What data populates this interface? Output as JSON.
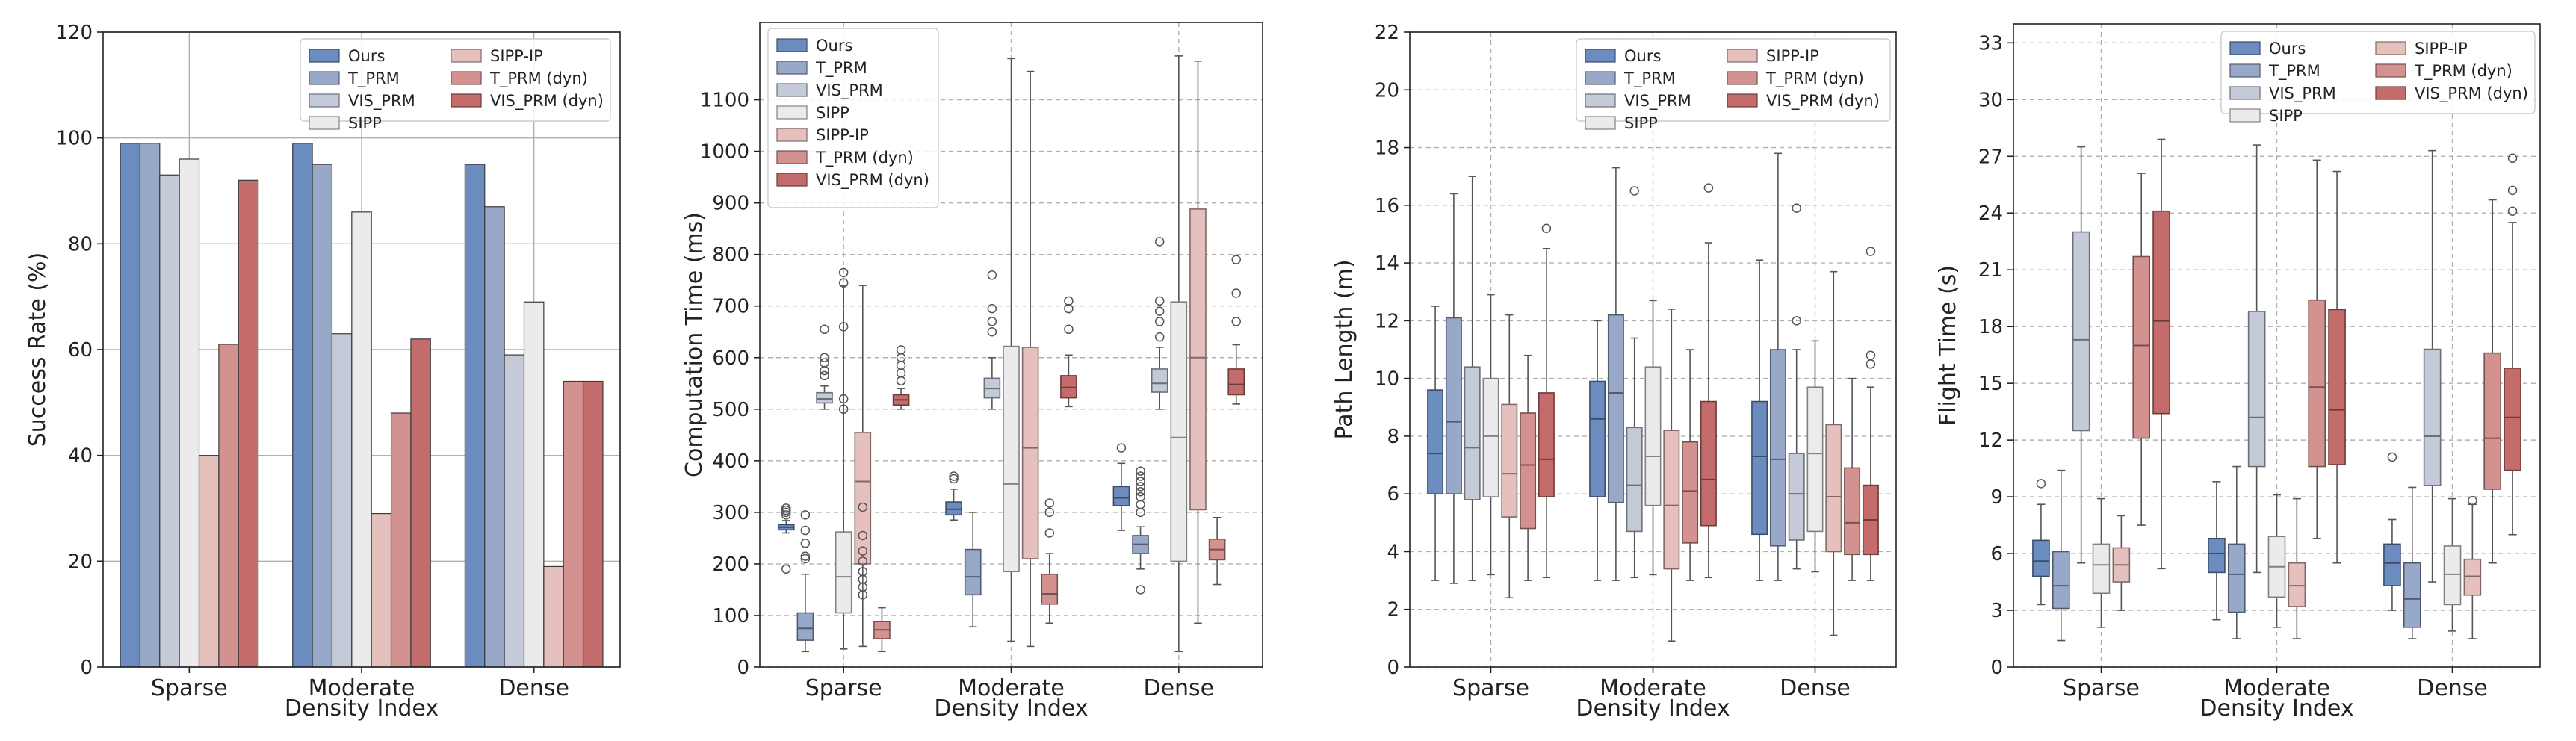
{
  "figure": {
    "colors": {
      "Ours": "#6b8cbf",
      "T_PRM": "#97a8c9",
      "VIS_PRM": "#c4cad8",
      "SIPP": "#ebebeb",
      "SIPP-IP": "#e6c0bd",
      "T_PRM (dyn)": "#d39290",
      "VIS_PRM (dyn)": "#c46c6b"
    }
  },
  "chart_data": [
    {
      "type": "bar",
      "xlabel": "Density Index",
      "ylabel": "Success Rate (%)",
      "ylim": [
        0,
        120
      ],
      "yticks": [
        0,
        20,
        40,
        60,
        80,
        100,
        120
      ],
      "categories": [
        "Sparse",
        "Moderate",
        "Dense"
      ],
      "legend": {
        "position": "top-right",
        "columns": 2
      },
      "series": [
        {
          "name": "Ours",
          "values": [
            99,
            99,
            95
          ]
        },
        {
          "name": "T_PRM",
          "values": [
            99,
            95,
            87
          ]
        },
        {
          "name": "VIS_PRM",
          "values": [
            93,
            63,
            59
          ]
        },
        {
          "name": "SIPP",
          "values": [
            96,
            86,
            69
          ]
        },
        {
          "name": "SIPP-IP",
          "values": [
            40,
            29,
            19
          ]
        },
        {
          "name": "T_PRM (dyn)",
          "values": [
            61,
            48,
            54
          ]
        },
        {
          "name": "VIS_PRM (dyn)",
          "values": [
            92,
            62,
            54
          ]
        }
      ]
    },
    {
      "type": "box",
      "xlabel": "Density Index",
      "ylabel": "Computation Time (ms)",
      "ylim": [
        0,
        1250
      ],
      "yticks": [
        0,
        100,
        200,
        300,
        400,
        500,
        600,
        700,
        800,
        900,
        1000,
        1100
      ],
      "categories": [
        "Sparse",
        "Moderate",
        "Dense"
      ],
      "legend": {
        "position": "top-left",
        "columns": 1
      },
      "series": [
        {
          "name": "Ours",
          "boxes": [
            {
              "wl": 260,
              "q1": 266,
              "med": 271,
              "q3": 276,
              "wh": 284,
              "out": [
                190,
                295,
                300,
                304,
                308
              ]
            },
            {
              "wl": 285,
              "q1": 295,
              "med": 306,
              "q3": 320,
              "wh": 345,
              "out": [
                365,
                370
              ]
            },
            {
              "wl": 265,
              "q1": 313,
              "med": 328,
              "q3": 350,
              "wh": 395,
              "out": [
                425
              ]
            }
          ]
        },
        {
          "name": "T_PRM",
          "boxes": [
            {
              "wl": 30,
              "q1": 52,
              "med": 75,
              "q3": 105,
              "wh": 180,
              "out": [
                210,
                215,
                240,
                265,
                295
              ]
            },
            {
              "wl": 78,
              "q1": 140,
              "med": 175,
              "q3": 228,
              "wh": 300,
              "out": []
            },
            {
              "wl": 190,
              "q1": 220,
              "med": 238,
              "q3": 255,
              "wh": 272,
              "out": [
                150,
                300,
                315,
                330,
                340,
                350,
                360,
                370,
                380
              ]
            }
          ]
        },
        {
          "name": "VIS_PRM",
          "boxes": [
            {
              "wl": 500,
              "q1": 512,
              "med": 520,
              "q3": 532,
              "wh": 545,
              "out": [
                565,
                575,
                590,
                600,
                655
              ]
            },
            {
              "wl": 500,
              "q1": 522,
              "med": 540,
              "q3": 560,
              "wh": 600,
              "out": [
                650,
                670,
                695,
                760
              ]
            },
            {
              "wl": 500,
              "q1": 533,
              "med": 550,
              "q3": 578,
              "wh": 620,
              "out": [
                640,
                670,
                690,
                710,
                825
              ]
            }
          ]
        },
        {
          "name": "SIPP",
          "boxes": [
            {
              "wl": 35,
              "q1": 105,
              "med": 175,
              "q3": 262,
              "wh": 740,
              "out": [
                500,
                520,
                660,
                745,
                765
              ]
            },
            {
              "wl": 50,
              "q1": 185,
              "med": 355,
              "q3": 622,
              "wh": 1180,
              "out": []
            },
            {
              "wl": 30,
              "q1": 205,
              "med": 445,
              "q3": 708,
              "wh": 1185,
              "out": []
            }
          ]
        },
        {
          "name": "SIPP-IP",
          "boxes": [
            {
              "wl": 40,
              "q1": 200,
              "med": 360,
              "q3": 455,
              "wh": 740,
              "out": [
                140,
                155,
                170,
                185,
                205,
                225,
                255,
                310
              ]
            },
            {
              "wl": 40,
              "q1": 210,
              "med": 425,
              "q3": 620,
              "wh": 1155,
              "out": []
            },
            {
              "wl": 85,
              "q1": 305,
              "med": 600,
              "q3": 888,
              "wh": 1175,
              "out": []
            }
          ]
        },
        {
          "name": "T_PRM (dyn)",
          "boxes": [
            {
              "wl": 30,
              "q1": 55,
              "med": 72,
              "q3": 88,
              "wh": 115,
              "out": []
            },
            {
              "wl": 85,
              "q1": 122,
              "med": 142,
              "q3": 180,
              "wh": 220,
              "out": [
                260,
                300,
                318
              ]
            },
            {
              "wl": 160,
              "q1": 208,
              "med": 228,
              "q3": 248,
              "wh": 290,
              "out": []
            }
          ]
        },
        {
          "name": "VIS_PRM (dyn)",
          "boxes": [
            {
              "wl": 500,
              "q1": 508,
              "med": 518,
              "q3": 528,
              "wh": 540,
              "out": [
                555,
                570,
                585,
                600,
                615
              ]
            },
            {
              "wl": 505,
              "q1": 522,
              "med": 542,
              "q3": 565,
              "wh": 605,
              "out": [
                655,
                695,
                710
              ]
            },
            {
              "wl": 510,
              "q1": 528,
              "med": 548,
              "q3": 578,
              "wh": 625,
              "out": [
                670,
                725,
                790
              ]
            }
          ]
        }
      ]
    },
    {
      "type": "box",
      "xlabel": "Density Index",
      "ylabel": "Path Length (m)",
      "ylim": [
        0,
        22
      ],
      "yticks": [
        0,
        2,
        4,
        6,
        8,
        10,
        12,
        14,
        16,
        18,
        20,
        22
      ],
      "categories": [
        "Sparse",
        "Moderate",
        "Dense"
      ],
      "legend": {
        "position": "top-right",
        "columns": 2
      },
      "series": [
        {
          "name": "Ours",
          "boxes": [
            {
              "wl": 3.0,
              "q1": 6.0,
              "med": 7.4,
              "q3": 9.6,
              "wh": 12.5,
              "out": []
            },
            {
              "wl": 3.0,
              "q1": 5.9,
              "med": 8.6,
              "q3": 9.9,
              "wh": 12.0,
              "out": []
            },
            {
              "wl": 3.0,
              "q1": 4.6,
              "med": 7.3,
              "q3": 9.2,
              "wh": 14.1,
              "out": []
            }
          ]
        },
        {
          "name": "T_PRM",
          "boxes": [
            {
              "wl": 2.9,
              "q1": 6.0,
              "med": 8.5,
              "q3": 12.1,
              "wh": 16.4,
              "out": []
            },
            {
              "wl": 3.0,
              "q1": 5.7,
              "med": 9.5,
              "q3": 12.2,
              "wh": 17.3,
              "out": []
            },
            {
              "wl": 3.0,
              "q1": 4.2,
              "med": 7.2,
              "q3": 11.0,
              "wh": 17.8,
              "out": []
            }
          ]
        },
        {
          "name": "VIS_PRM",
          "boxes": [
            {
              "wl": 3.0,
              "q1": 5.8,
              "med": 7.6,
              "q3": 10.4,
              "wh": 17.0,
              "out": []
            },
            {
              "wl": 3.1,
              "q1": 4.7,
              "med": 6.3,
              "q3": 8.3,
              "wh": 11.4,
              "out": [
                16.5
              ]
            },
            {
              "wl": 3.4,
              "q1": 4.4,
              "med": 6.0,
              "q3": 7.4,
              "wh": 11.0,
              "out": [
                12.0,
                15.9
              ]
            }
          ]
        },
        {
          "name": "SIPP",
          "boxes": [
            {
              "wl": 3.2,
              "q1": 5.9,
              "med": 8.0,
              "q3": 10.0,
              "wh": 12.9,
              "out": []
            },
            {
              "wl": 3.2,
              "q1": 5.6,
              "med": 7.3,
              "q3": 10.4,
              "wh": 12.7,
              "out": []
            },
            {
              "wl": 3.3,
              "q1": 4.7,
              "med": 7.4,
              "q3": 9.7,
              "wh": 11.3,
              "out": []
            }
          ]
        },
        {
          "name": "SIPP-IP",
          "boxes": [
            {
              "wl": 2.4,
              "q1": 5.2,
              "med": 6.7,
              "q3": 9.1,
              "wh": 12.2,
              "out": []
            },
            {
              "wl": 0.9,
              "q1": 3.4,
              "med": 5.6,
              "q3": 8.2,
              "wh": 12.4,
              "out": []
            },
            {
              "wl": 1.1,
              "q1": 4.0,
              "med": 5.9,
              "q3": 8.4,
              "wh": 13.7,
              "out": []
            }
          ]
        },
        {
          "name": "T_PRM (dyn)",
          "boxes": [
            {
              "wl": 3.0,
              "q1": 4.8,
              "med": 7.0,
              "q3": 8.8,
              "wh": 10.8,
              "out": []
            },
            {
              "wl": 3.0,
              "q1": 4.3,
              "med": 6.1,
              "q3": 7.8,
              "wh": 11.0,
              "out": []
            },
            {
              "wl": 3.0,
              "q1": 3.9,
              "med": 5.0,
              "q3": 6.9,
              "wh": 10.0,
              "out": []
            }
          ]
        },
        {
          "name": "VIS_PRM (dyn)",
          "boxes": [
            {
              "wl": 3.1,
              "q1": 5.9,
              "med": 7.2,
              "q3": 9.5,
              "wh": 14.5,
              "out": [
                15.2
              ]
            },
            {
              "wl": 3.1,
              "q1": 4.9,
              "med": 6.5,
              "q3": 9.2,
              "wh": 14.7,
              "out": [
                16.6
              ]
            },
            {
              "wl": 3.0,
              "q1": 3.9,
              "med": 5.1,
              "q3": 6.3,
              "wh": 9.7,
              "out": [
                10.5,
                10.8,
                14.4
              ]
            }
          ]
        }
      ]
    },
    {
      "type": "box",
      "xlabel": "Density Index",
      "ylabel": "Flight Time (s)",
      "ylim": [
        0,
        34
      ],
      "yticks": [
        0,
        3,
        6,
        9,
        12,
        15,
        18,
        21,
        24,
        27,
        30,
        33
      ],
      "categories": [
        "Sparse",
        "Moderate",
        "Dense"
      ],
      "legend": {
        "position": "top-right",
        "columns": 2
      },
      "series": [
        {
          "name": "Ours",
          "boxes": [
            {
              "wl": 3.3,
              "q1": 4.8,
              "med": 5.6,
              "q3": 6.7,
              "wh": 8.6,
              "out": [
                9.7
              ]
            },
            {
              "wl": 2.5,
              "q1": 5.0,
              "med": 6.0,
              "q3": 6.8,
              "wh": 9.8,
              "out": []
            },
            {
              "wl": 3.0,
              "q1": 4.3,
              "med": 5.5,
              "q3": 6.5,
              "wh": 7.8,
              "out": [
                11.1
              ]
            }
          ]
        },
        {
          "name": "T_PRM",
          "boxes": [
            {
              "wl": 1.4,
              "q1": 3.1,
              "med": 4.3,
              "q3": 6.1,
              "wh": 10.4,
              "out": []
            },
            {
              "wl": 1.5,
              "q1": 2.9,
              "med": 4.9,
              "q3": 6.5,
              "wh": 10.6,
              "out": []
            },
            {
              "wl": 1.5,
              "q1": 2.1,
              "med": 3.6,
              "q3": 5.5,
              "wh": 9.5,
              "out": []
            }
          ]
        },
        {
          "name": "VIS_PRM",
          "boxes": [
            {
              "wl": 5.5,
              "q1": 12.5,
              "med": 17.3,
              "q3": 23.0,
              "wh": 27.5,
              "out": []
            },
            {
              "wl": 5.0,
              "q1": 10.6,
              "med": 13.2,
              "q3": 18.8,
              "wh": 27.6,
              "out": []
            },
            {
              "wl": 4.5,
              "q1": 9.6,
              "med": 12.2,
              "q3": 16.8,
              "wh": 27.3,
              "out": []
            }
          ]
        },
        {
          "name": "SIPP",
          "boxes": [
            {
              "wl": 2.1,
              "q1": 3.9,
              "med": 5.4,
              "q3": 6.5,
              "wh": 8.9,
              "out": []
            },
            {
              "wl": 2.1,
              "q1": 3.7,
              "med": 5.3,
              "q3": 6.9,
              "wh": 9.1,
              "out": []
            },
            {
              "wl": 1.9,
              "q1": 3.3,
              "med": 4.9,
              "q3": 6.4,
              "wh": 8.9,
              "out": []
            }
          ]
        },
        {
          "name": "SIPP-IP",
          "boxes": [
            {
              "wl": 3.0,
              "q1": 4.5,
              "med": 5.4,
              "q3": 6.3,
              "wh": 8.0,
              "out": []
            },
            {
              "wl": 1.5,
              "q1": 3.2,
              "med": 4.3,
              "q3": 5.5,
              "wh": 8.9,
              "out": []
            },
            {
              "wl": 1.5,
              "q1": 3.8,
              "med": 4.8,
              "q3": 5.7,
              "wh": 8.6,
              "out": [
                8.8
              ]
            }
          ]
        },
        {
          "name": "T_PRM (dyn)",
          "boxes": [
            {
              "wl": 7.5,
              "q1": 12.1,
              "med": 17.0,
              "q3": 21.7,
              "wh": 26.1,
              "out": []
            },
            {
              "wl": 6.8,
              "q1": 10.6,
              "med": 14.8,
              "q3": 19.4,
              "wh": 26.8,
              "out": []
            },
            {
              "wl": 5.5,
              "q1": 9.4,
              "med": 12.1,
              "q3": 16.6,
              "wh": 24.7,
              "out": []
            }
          ]
        },
        {
          "name": "VIS_PRM (dyn)",
          "boxes": [
            {
              "wl": 5.2,
              "q1": 13.4,
              "med": 18.3,
              "q3": 24.1,
              "wh": 27.9,
              "out": []
            },
            {
              "wl": 5.5,
              "q1": 10.7,
              "med": 13.6,
              "q3": 18.9,
              "wh": 26.2,
              "out": []
            },
            {
              "wl": 7.0,
              "q1": 10.4,
              "med": 13.2,
              "q3": 15.8,
              "wh": 23.5,
              "out": [
                24.1,
                25.2,
                26.9
              ]
            }
          ]
        }
      ]
    }
  ]
}
